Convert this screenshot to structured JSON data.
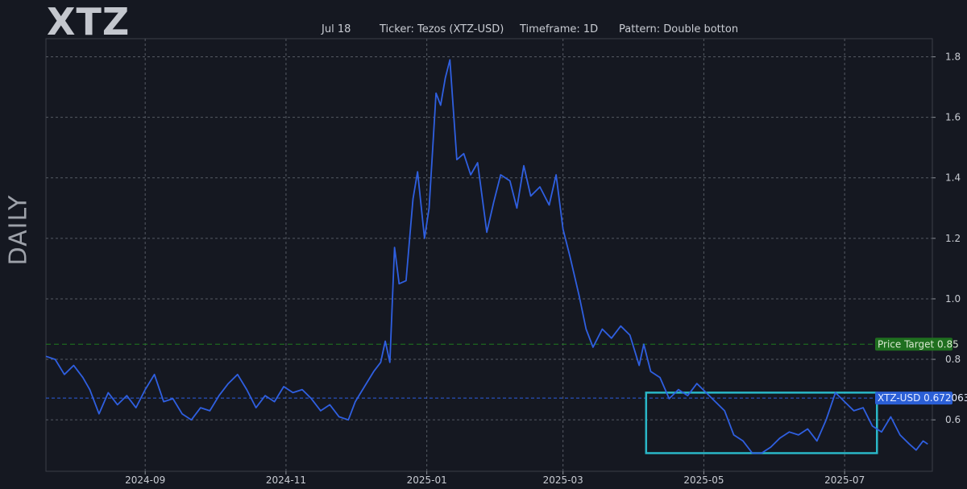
{
  "title": "XTZ",
  "side_label": "DAILY",
  "header": {
    "date": "Jul 18",
    "ticker": "Ticker: Tezos (XTZ-USD)",
    "timeframe": "Timeframe: 1D",
    "pattern": "Pattern: Double botton"
  },
  "colors": {
    "background": "#151821",
    "price_line": "#2f5fe0",
    "target": "#1e7a1e",
    "current": "#2f5fe0",
    "pattern_box": "#2ab7c7",
    "grid": "#555a63"
  },
  "chart_data": {
    "type": "line",
    "x_ticks": [
      "2024-09",
      "2024-11",
      "2025-01",
      "2025-03",
      "2025-05",
      "2025-07"
    ],
    "y_ticks": [
      "0.6",
      "0.8",
      "1.0",
      "1.2",
      "1.4",
      "1.6",
      "1.8"
    ],
    "ylim": [
      0.43,
      1.86
    ],
    "xlim": [
      "2024-07-20",
      "2025-08-08"
    ],
    "grid": true,
    "series": [
      {
        "values": [
          [
            "2024-07-20",
            0.81
          ],
          [
            "2024-07-24",
            0.8
          ],
          [
            "2024-07-28",
            0.75
          ],
          [
            "2024-08-01",
            0.78
          ],
          [
            "2024-08-05",
            0.74
          ],
          [
            "2024-08-08",
            0.7
          ],
          [
            "2024-08-12",
            0.62
          ],
          [
            "2024-08-16",
            0.69
          ],
          [
            "2024-08-20",
            0.65
          ],
          [
            "2024-08-24",
            0.68
          ],
          [
            "2024-08-28",
            0.64
          ],
          [
            "2024-09-01",
            0.7
          ],
          [
            "2024-09-05",
            0.75
          ],
          [
            "2024-09-09",
            0.66
          ],
          [
            "2024-09-13",
            0.67
          ],
          [
            "2024-09-17",
            0.62
          ],
          [
            "2024-09-21",
            0.6
          ],
          [
            "2024-09-25",
            0.64
          ],
          [
            "2024-09-29",
            0.63
          ],
          [
            "2024-10-03",
            0.68
          ],
          [
            "2024-10-07",
            0.72
          ],
          [
            "2024-10-11",
            0.75
          ],
          [
            "2024-10-15",
            0.7
          ],
          [
            "2024-10-19",
            0.64
          ],
          [
            "2024-10-23",
            0.68
          ],
          [
            "2024-10-27",
            0.66
          ],
          [
            "2024-10-31",
            0.71
          ],
          [
            "2024-11-04",
            0.69
          ],
          [
            "2024-11-08",
            0.7
          ],
          [
            "2024-11-12",
            0.67
          ],
          [
            "2024-11-16",
            0.63
          ],
          [
            "2024-11-20",
            0.65
          ],
          [
            "2024-11-24",
            0.61
          ],
          [
            "2024-11-28",
            0.6
          ],
          [
            "2024-12-01",
            0.66
          ],
          [
            "2024-12-05",
            0.71
          ],
          [
            "2024-12-09",
            0.76
          ],
          [
            "2024-12-12",
            0.79
          ],
          [
            "2024-12-14",
            0.86
          ],
          [
            "2024-12-16",
            0.79
          ],
          [
            "2024-12-18",
            1.17
          ],
          [
            "2024-12-20",
            1.05
          ],
          [
            "2024-12-23",
            1.06
          ],
          [
            "2024-12-26",
            1.33
          ],
          [
            "2024-12-28",
            1.42
          ],
          [
            "2024-12-31",
            1.2
          ],
          [
            "2025-01-02",
            1.3
          ],
          [
            "2025-01-05",
            1.68
          ],
          [
            "2025-01-07",
            1.64
          ],
          [
            "2025-01-09",
            1.73
          ],
          [
            "2025-01-11",
            1.79
          ],
          [
            "2025-01-14",
            1.46
          ],
          [
            "2025-01-17",
            1.48
          ],
          [
            "2025-01-20",
            1.41
          ],
          [
            "2025-01-23",
            1.45
          ],
          [
            "2025-01-27",
            1.22
          ],
          [
            "2025-01-30",
            1.32
          ],
          [
            "2025-02-02",
            1.41
          ],
          [
            "2025-02-06",
            1.39
          ],
          [
            "2025-02-09",
            1.3
          ],
          [
            "2025-02-12",
            1.44
          ],
          [
            "2025-02-15",
            1.34
          ],
          [
            "2025-02-19",
            1.37
          ],
          [
            "2025-02-23",
            1.31
          ],
          [
            "2025-02-26",
            1.41
          ],
          [
            "2025-03-01",
            1.23
          ],
          [
            "2025-03-04",
            1.14
          ],
          [
            "2025-03-08",
            1.01
          ],
          [
            "2025-03-11",
            0.9
          ],
          [
            "2025-03-14",
            0.84
          ],
          [
            "2025-03-18",
            0.9
          ],
          [
            "2025-03-22",
            0.87
          ],
          [
            "2025-03-26",
            0.91
          ],
          [
            "2025-03-30",
            0.88
          ],
          [
            "2025-04-03",
            0.78
          ],
          [
            "2025-04-05",
            0.85
          ],
          [
            "2025-04-08",
            0.76
          ],
          [
            "2025-04-12",
            0.74
          ],
          [
            "2025-04-16",
            0.67
          ],
          [
            "2025-04-20",
            0.7
          ],
          [
            "2025-04-24",
            0.68
          ],
          [
            "2025-04-28",
            0.72
          ],
          [
            "2025-05-02",
            0.69
          ],
          [
            "2025-05-06",
            0.66
          ],
          [
            "2025-05-10",
            0.63
          ],
          [
            "2025-05-14",
            0.55
          ],
          [
            "2025-05-18",
            0.53
          ],
          [
            "2025-05-22",
            0.49
          ],
          [
            "2025-05-26",
            0.49
          ],
          [
            "2025-05-30",
            0.51
          ],
          [
            "2025-06-03",
            0.54
          ],
          [
            "2025-06-07",
            0.56
          ],
          [
            "2025-06-11",
            0.55
          ],
          [
            "2025-06-15",
            0.57
          ],
          [
            "2025-06-19",
            0.53
          ],
          [
            "2025-06-23",
            0.6
          ],
          [
            "2025-06-27",
            0.69
          ],
          [
            "2025-07-01",
            0.66
          ],
          [
            "2025-07-05",
            0.63
          ],
          [
            "2025-07-09",
            0.64
          ],
          [
            "2025-07-13",
            0.58
          ],
          [
            "2025-07-17",
            0.56
          ],
          [
            "2025-07-21",
            0.61
          ],
          [
            "2025-07-25",
            0.55
          ],
          [
            "2025-07-29",
            0.52
          ],
          [
            "2025-08-01",
            0.5
          ],
          [
            "2025-08-04",
            0.53
          ],
          [
            "2025-08-06",
            0.52
          ]
        ]
      }
    ],
    "pattern_box": {
      "x_start": "2025-04-06",
      "x_end": "2025-07-15",
      "y_low": 0.49,
      "y_high": 0.69
    },
    "price_target": {
      "label": "Price Target 0.85",
      "value": 0.85
    },
    "current_price": {
      "label": "XTZ-USD 0.672063",
      "value": 0.672063
    }
  }
}
